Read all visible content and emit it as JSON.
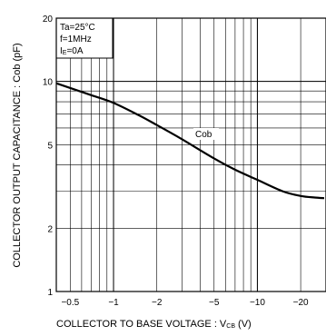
{
  "chart_data": {
    "type": "line",
    "xlabel": "COLLECTOR TO BASE VOLTAGE : V",
    "xlabel_sub": "CB",
    "xlabel_unit": " (V)",
    "ylabel": "COLLECTOR OUTPUT CAPACITANCE : Cob (pF)",
    "x_scale": "log",
    "y_scale": "log",
    "xlim": [
      -0.4,
      -30
    ],
    "ylim": [
      1,
      20
    ],
    "grid": true,
    "x_ticks": [
      {
        "value": -0.5,
        "label": "−0.5"
      },
      {
        "value": -1,
        "label": "−1"
      },
      {
        "value": -2,
        "label": "−2"
      },
      {
        "value": -5,
        "label": "−5"
      },
      {
        "value": -10,
        "label": "−10"
      },
      {
        "value": -20,
        "label": "−20"
      }
    ],
    "y_ticks": [
      {
        "value": 1,
        "label": "1"
      },
      {
        "value": 2,
        "label": "2"
      },
      {
        "value": 5,
        "label": "5"
      },
      {
        "value": 10,
        "label": "10"
      },
      {
        "value": 20,
        "label": "20"
      }
    ],
    "conditions": {
      "line1": "Ta=25°C",
      "line2": "f=1MHz",
      "line3_main": "I",
      "line3_sub": "E",
      "line3_rest": "=0A"
    },
    "series": [
      {
        "name": "Cob",
        "x": [
          -0.4,
          -0.5,
          -0.7,
          -1,
          -1.5,
          -2,
          -3,
          -5,
          -7,
          -10,
          -15,
          -20,
          -25,
          -30
        ],
        "y": [
          9.8,
          9.3,
          8.6,
          7.9,
          6.9,
          6.2,
          5.3,
          4.3,
          3.8,
          3.4,
          3.0,
          2.85,
          2.8,
          2.78
        ]
      }
    ]
  }
}
